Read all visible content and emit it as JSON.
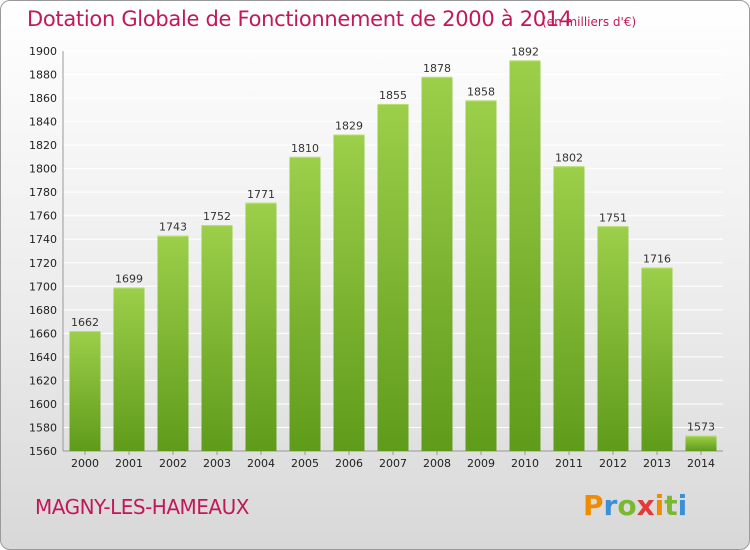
{
  "title": "Dotation Globale de Fonctionnement de 2000 à 2014",
  "unit_note": "(en milliers d'€)",
  "commune": "MAGNY-LES-HAMEAUX",
  "logo_text": "Proxiti",
  "colors": {
    "accent": "#c2185b",
    "bar_top": "#9ccf4a",
    "bar_bottom": "#5f9b1a",
    "grid": "#ffffff"
  },
  "chart_data": {
    "type": "bar",
    "title": "Dotation Globale de Fonctionnement de 2000 à 2014",
    "xlabel": "",
    "ylabel": "",
    "categories": [
      "2000",
      "2001",
      "2002",
      "2003",
      "2004",
      "2005",
      "2006",
      "2007",
      "2008",
      "2009",
      "2010",
      "2011",
      "2012",
      "2013",
      "2014"
    ],
    "values": [
      1662,
      1699,
      1743,
      1752,
      1771,
      1810,
      1829,
      1855,
      1878,
      1858,
      1892,
      1802,
      1751,
      1716,
      1573
    ],
    "ylim": [
      1560,
      1900
    ],
    "yticks": [
      1560,
      1580,
      1600,
      1620,
      1640,
      1660,
      1680,
      1700,
      1720,
      1740,
      1760,
      1780,
      1800,
      1820,
      1840,
      1860,
      1880,
      1900
    ],
    "grid": true
  }
}
